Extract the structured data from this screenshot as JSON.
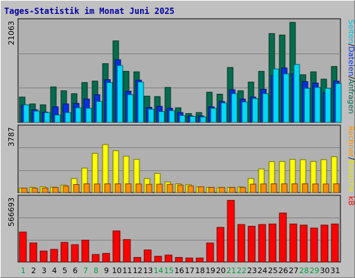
{
  "chart_data": {
    "type": "bar",
    "title": "Tages-Statistik im Monat Juni 2025",
    "days": [
      "1",
      "2",
      "3",
      "4",
      "5",
      "6",
      "7",
      "8",
      "9",
      "10",
      "11",
      "12",
      "13",
      "14",
      "15",
      "16",
      "17",
      "18",
      "19",
      "20",
      "21",
      "22",
      "23",
      "24",
      "25",
      "26",
      "27",
      "28",
      "29",
      "30",
      "31"
    ],
    "weekend_days": [
      "1",
      "7",
      "8",
      "14",
      "15",
      "21",
      "22",
      "28",
      "29"
    ],
    "panels": [
      {
        "name": "top",
        "ymax_label": "21063",
        "ymax": 21063,
        "series": [
          {
            "name": "Anfragen",
            "color": "#006c4d",
            "values": [
              5200,
              3800,
              3600,
              7300,
              6500,
              5900,
              8200,
              8500,
              12100,
              16800,
              10500,
              10400,
              5400,
              5300,
              7200,
              3000,
              1800,
              2000,
              6200,
              5800,
              11300,
              6500,
              8300,
              10500,
              18300,
              18000,
              20600,
              9800,
              10400,
              8900,
              11500
            ]
          },
          {
            "name": "Dateien",
            "color": "#0030e0",
            "values": [
              3600,
              2600,
              2100,
              3200,
              3800,
              3900,
              4800,
              5700,
              8800,
              12900,
              6400,
              8700,
              3100,
              3300,
              2900,
              2000,
              1300,
              1300,
              3200,
              4300,
              6700,
              4800,
              5200,
              6800,
              9600,
              11200,
              10000,
              8400,
              8100,
              6100,
              8500
            ]
          },
          {
            "name": "Seiten",
            "color": "#00d8f8",
            "values": [
              3600,
              2300,
              2000,
              1500,
              2000,
              3000,
              2900,
              4300,
              8200,
              11700,
              5700,
              8300,
              2700,
              2200,
              2400,
              1400,
              1200,
              1100,
              2900,
              4000,
              5900,
              4200,
              4900,
              5900,
              11000,
              10000,
              11900,
              7000,
              7200,
              7000,
              8000
            ]
          }
        ]
      },
      {
        "name": "middle",
        "ymax_label": "3787",
        "ymax": 3787,
        "series": [
          {
            "name": "Besuche",
            "color": "#ffff00",
            "values": [
              250,
              300,
              330,
              310,
              430,
              800,
              1400,
              2250,
              2750,
              2400,
              2080,
              1900,
              800,
              1100,
              600,
              500,
              450,
              320,
              300,
              280,
              300,
              320,
              800,
              1350,
              1770,
              1780,
              1900,
              1880,
              1780,
              1880,
              2050
            ]
          },
          {
            "name": "Rechner",
            "color": "#ff9000",
            "values": [
              250,
              240,
              260,
              290,
              370,
              460,
              500,
              490,
              500,
              500,
              500,
              490,
              470,
              480,
              470,
              430,
              380,
              330,
              300,
              290,
              290,
              290,
              480,
              490,
              500,
              500,
              500,
              500,
              490,
              490,
              500
            ]
          }
        ]
      },
      {
        "name": "bottom",
        "ymax_label": "566693",
        "ymax": 566693,
        "series": [
          {
            "name": "kB",
            "color": "#ff0000",
            "values": [
              260000,
              165000,
              95000,
              110000,
              170000,
              150000,
              190000,
              65000,
              75000,
              270000,
              195000,
              40000,
              105000,
              50000,
              60000,
              40000,
              35000,
              35000,
              165000,
              300000,
              535000,
              325000,
              310000,
              325000,
              330000,
              425000,
              330000,
              320000,
              295000,
              320000,
              330000
            ]
          }
        ]
      }
    ],
    "legend_labels": {
      "top": [
        {
          "text": "Seiten",
          "color": "#00c0e0"
        },
        {
          "text": "/",
          "color": "#000000"
        },
        {
          "text": "Dateien",
          "color": "#0030e0"
        },
        {
          "text": "/",
          "color": "#000000"
        },
        {
          "text": "Anfragen",
          "color": "#006c4d"
        }
      ],
      "middle": [
        {
          "text": "Rechner",
          "color": "#ff9000"
        },
        {
          "text": "/",
          "color": "#000000"
        },
        {
          "text": "Besuche",
          "color": "#e8e800"
        }
      ],
      "bottom": [
        {
          "text": "kB",
          "color": "#ff0000"
        }
      ]
    },
    "grid": true
  }
}
